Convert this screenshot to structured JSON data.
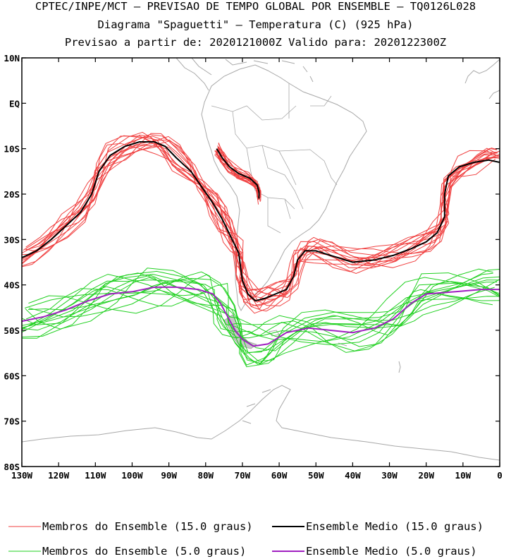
{
  "titles": {
    "line1": "CPTEC/INPE/MCT – PREVISAO DE TEMPO GLOBAL POR ENSEMBLE – TQ0126L028",
    "line2": "Diagrama \"Spaguetti\" – Temperatura (C) (925 hPa)",
    "line3": "Previsao a partir de: 2020121000Z  Valido para: 2020122300Z"
  },
  "colors": {
    "member15": "#f04040",
    "mean15": "#000000",
    "member5": "#20d020",
    "mean5": "#a020c0",
    "land": "#a8a8a8",
    "frame": "#000000"
  },
  "chart_data": {
    "type": "line",
    "title": "Diagrama \"Spaguetti\" – Temperatura (C) (925 hPa)",
    "xlabel": "",
    "ylabel": "",
    "xlim": [
      -130,
      0
    ],
    "ylim": [
      -80,
      10
    ],
    "x_ticks": [
      {
        "value": -130,
        "label": "130W"
      },
      {
        "value": -120,
        "label": "120W"
      },
      {
        "value": -110,
        "label": "110W"
      },
      {
        "value": -100,
        "label": "100W"
      },
      {
        "value": -90,
        "label": "90W"
      },
      {
        "value": -80,
        "label": "80W"
      },
      {
        "value": -70,
        "label": "70W"
      },
      {
        "value": -60,
        "label": "60W"
      },
      {
        "value": -50,
        "label": "50W"
      },
      {
        "value": -40,
        "label": "40W"
      },
      {
        "value": -30,
        "label": "30W"
      },
      {
        "value": -20,
        "label": "20W"
      },
      {
        "value": -10,
        "label": "10W"
      },
      {
        "value": 0,
        "label": "0"
      }
    ],
    "y_ticks": [
      {
        "value": 10,
        "label": "10N"
      },
      {
        "value": 0,
        "label": "EQ"
      },
      {
        "value": -10,
        "label": "10S"
      },
      {
        "value": -20,
        "label": "20S"
      },
      {
        "value": -30,
        "label": "30S"
      },
      {
        "value": -40,
        "label": "40S"
      },
      {
        "value": -50,
        "label": "50S"
      },
      {
        "value": -60,
        "label": "60S"
      },
      {
        "value": -70,
        "label": "70S"
      },
      {
        "value": -80,
        "label": "80S"
      }
    ],
    "series": [
      {
        "name": "Ensemble Medio (15.0 graus)",
        "role": "mean15",
        "points": [
          [
            -130,
            -34
          ],
          [
            -126,
            -32.5
          ],
          [
            -122,
            -30
          ],
          [
            -118,
            -27
          ],
          [
            -114,
            -24
          ],
          [
            -111,
            -20
          ],
          [
            -109,
            -15
          ],
          [
            -106,
            -11.5
          ],
          [
            -102,
            -9.5
          ],
          [
            -98,
            -8.5
          ],
          [
            -94,
            -8.5
          ],
          [
            -91,
            -9.5
          ],
          [
            -88,
            -12
          ],
          [
            -84,
            -15
          ],
          [
            -81,
            -18.5
          ],
          [
            -78,
            -22
          ],
          [
            -75.5,
            -25.5
          ],
          [
            -74,
            -28
          ],
          [
            -72.5,
            -30.5
          ],
          [
            -71,
            -33
          ],
          [
            -70.5,
            -36
          ],
          [
            -70,
            -39
          ],
          [
            -68.5,
            -42
          ],
          [
            -66.5,
            -43.5
          ],
          [
            -64,
            -43
          ],
          [
            -61,
            -42
          ],
          [
            -58,
            -41
          ],
          [
            -56,
            -38
          ],
          [
            -55,
            -34.5
          ],
          [
            -53,
            -32.5
          ],
          [
            -50,
            -32.5
          ],
          [
            -46,
            -33.5
          ],
          [
            -40,
            -35
          ],
          [
            -34,
            -34.5
          ],
          [
            -29,
            -33.5
          ],
          [
            -24,
            -32
          ],
          [
            -20,
            -30.5
          ],
          [
            -17,
            -28.5
          ],
          [
            -15,
            -25
          ],
          [
            -15,
            -20
          ],
          [
            -14,
            -16
          ],
          [
            -11,
            -14
          ],
          [
            -7,
            -13
          ],
          [
            -3,
            -12.5
          ],
          [
            0,
            -13
          ]
        ]
      },
      {
        "name": "Ensemble Medio (15.0 graus)",
        "role": "mean15",
        "points": [
          [
            -77,
            -10
          ],
          [
            -75.5,
            -12
          ],
          [
            -73.5,
            -14
          ],
          [
            -71,
            -15.5
          ],
          [
            -68,
            -16.5
          ],
          [
            -66,
            -18
          ],
          [
            -65.5,
            -19.5
          ],
          [
            -65.5,
            -21
          ]
        ]
      },
      {
        "name": "Ensemble Medio (5.0 graus)",
        "role": "mean5",
        "points": [
          [
            -130,
            -48
          ],
          [
            -124,
            -47
          ],
          [
            -118,
            -45.5
          ],
          [
            -112,
            -43.5
          ],
          [
            -106,
            -42
          ],
          [
            -100,
            -41.5
          ],
          [
            -94,
            -40.5
          ],
          [
            -88,
            -40.5
          ],
          [
            -82,
            -41
          ],
          [
            -78,
            -42
          ],
          [
            -76,
            -44
          ],
          [
            -74,
            -47
          ],
          [
            -72,
            -50
          ],
          [
            -70,
            -52
          ],
          [
            -67,
            -53.5
          ],
          [
            -63,
            -53
          ],
          [
            -58,
            -50.5
          ],
          [
            -52,
            -49.5
          ],
          [
            -46,
            -50
          ],
          [
            -40,
            -50.5
          ],
          [
            -34,
            -49.5
          ],
          [
            -29,
            -47.5
          ],
          [
            -24,
            -44
          ],
          [
            -20,
            -42
          ],
          [
            -12,
            -41.5
          ],
          [
            -5,
            -41
          ],
          [
            0,
            -41
          ]
        ]
      }
    ],
    "member_envelope": {
      "members_15": "Membros do Ensemble (15.0 graus)",
      "members_5": "Membros do Ensemble (5.0 graus)",
      "count": 15
    }
  },
  "legend": {
    "item1": "Membros do Ensemble (15.0 graus)",
    "item2": "Ensemble Medio (15.0 graus)",
    "item3": "Membros do Ensemble (5.0 graus)",
    "item4": "Ensemble Medio (5.0 graus)"
  }
}
